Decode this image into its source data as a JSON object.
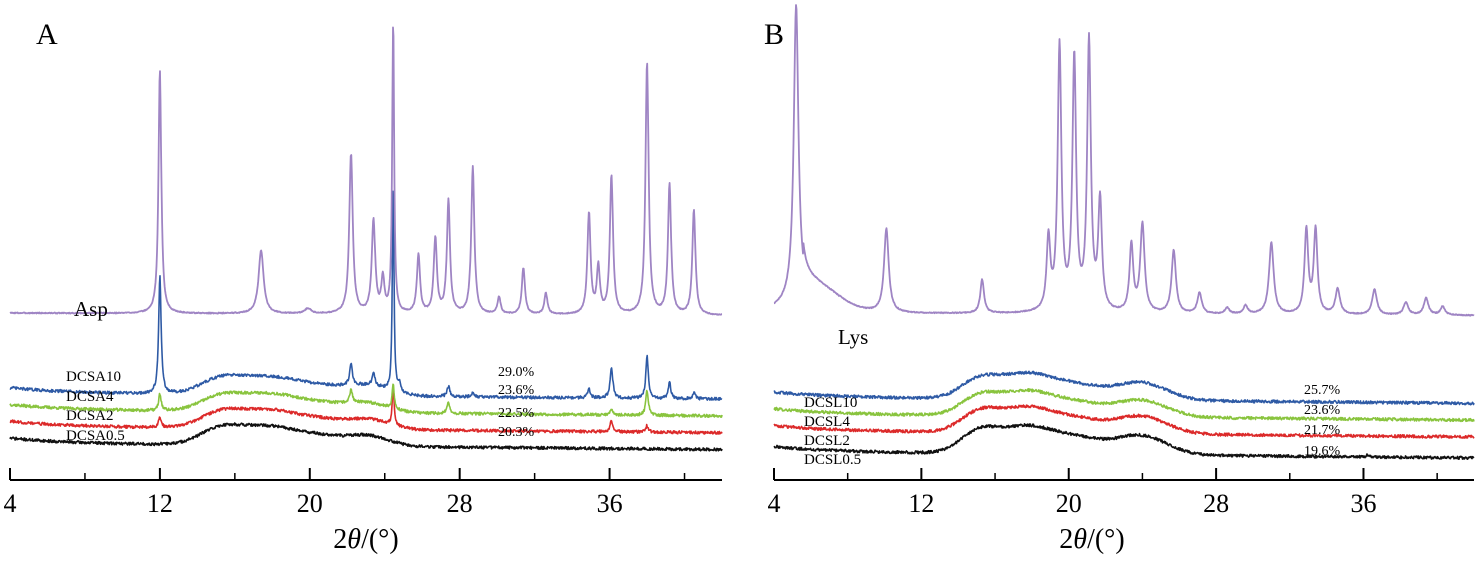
{
  "chart_data": [
    {
      "type": "line",
      "panel_label": "A",
      "xlabel_prefix": "2",
      "xlabel_var": "θ",
      "xlabel_unit": "/(°)",
      "xlim": [
        4,
        42
      ],
      "xticks": [
        4,
        12,
        20,
        28,
        36
      ],
      "y_axis_shown": false,
      "colors": {
        "purple": "#9f85c4",
        "blue": "#2e5aa5",
        "green": "#89c43e",
        "red": "#dc2a2a",
        "black": "#111111"
      },
      "series": [
        {
          "name": "Asp",
          "color": "#9f85c4",
          "baseline": 40,
          "peaks": [
            [
              12.0,
              58,
              0.09
            ],
            [
              17.4,
              15,
              0.16
            ],
            [
              19.9,
              1.2,
              0.2
            ],
            [
              22.2,
              38,
              0.11
            ],
            [
              23.4,
              22,
              0.11
            ],
            [
              23.9,
              8,
              0.1
            ],
            [
              24.45,
              70,
              0.06
            ],
            [
              25.8,
              14,
              0.1
            ],
            [
              26.7,
              18,
              0.1
            ],
            [
              27.4,
              27,
              0.1
            ],
            [
              28.7,
              35,
              0.1
            ],
            [
              30.1,
              4,
              0.1
            ],
            [
              31.4,
              11,
              0.1
            ],
            [
              32.6,
              5,
              0.1
            ],
            [
              34.9,
              24,
              0.1
            ],
            [
              35.4,
              11,
              0.1
            ],
            [
              36.1,
              33,
              0.1
            ],
            [
              38.0,
              60,
              0.1
            ],
            [
              39.2,
              31,
              0.1
            ],
            [
              40.5,
              25,
              0.1
            ]
          ]
        },
        {
          "name": "DCSA10",
          "percent": "29.0%",
          "color": "#2e5aa5",
          "baseline": 21,
          "amorphous": [
            [
              15.2,
              3.2,
              1.1
            ],
            [
              17.8,
              4.2,
              1.6
            ],
            [
              20.8,
              1.8,
              1.3
            ],
            [
              23.2,
              2.2,
              1.1
            ]
          ],
          "peaks": [
            [
              12.0,
              28,
              0.08
            ],
            [
              22.2,
              5,
              0.09
            ],
            [
              23.4,
              3,
              0.09
            ],
            [
              24.45,
              50,
              0.05
            ],
            [
              24.8,
              2,
              0.08
            ],
            [
              27.4,
              2.5,
              0.09
            ],
            [
              28.7,
              1,
              0.09
            ],
            [
              34.9,
              2,
              0.09
            ],
            [
              36.1,
              7,
              0.09
            ],
            [
              38.0,
              10,
              0.08
            ],
            [
              39.2,
              4,
              0.08
            ],
            [
              40.5,
              1.5,
              0.08
            ]
          ]
        },
        {
          "name": "DCSA4",
          "percent": "23.6%",
          "color": "#89c43e",
          "baseline": 17,
          "amorphous": [
            [
              15.2,
              3.0,
              1.1
            ],
            [
              17.8,
              4.2,
              1.6
            ],
            [
              20.8,
              1.7,
              1.3
            ],
            [
              23.2,
              2.1,
              1.1
            ]
          ],
          "peaks": [
            [
              12.0,
              4,
              0.08
            ],
            [
              22.2,
              3,
              0.09
            ],
            [
              24.45,
              6,
              0.06
            ],
            [
              27.4,
              2.5,
              0.09
            ],
            [
              36.1,
              1.5,
              0.09
            ],
            [
              38.0,
              6,
              0.08
            ]
          ]
        },
        {
          "name": "DCSA2",
          "percent": "22.5%",
          "color": "#dc2a2a",
          "baseline": 13,
          "amorphous": [
            [
              15.2,
              3.2,
              1.1
            ],
            [
              17.8,
              4.3,
              1.6
            ],
            [
              20.8,
              1.8,
              1.3
            ],
            [
              23.2,
              2.2,
              1.1
            ]
          ],
          "peaks": [
            [
              12.0,
              2.5,
              0.08
            ],
            [
              24.45,
              9,
              0.06
            ],
            [
              36.1,
              2.5,
              0.09
            ],
            [
              38.0,
              1.5,
              0.08
            ]
          ]
        },
        {
          "name": "DCSA0.5",
          "percent": "20.3%",
          "color": "#111111",
          "baseline": 9,
          "amorphous": [
            [
              15.2,
              3.4,
              1.1
            ],
            [
              17.8,
              4.4,
              1.6
            ],
            [
              20.8,
              1.8,
              1.3
            ],
            [
              23.2,
              2.3,
              1.1
            ]
          ],
          "peaks": []
        }
      ]
    },
    {
      "type": "line",
      "panel_label": "B",
      "xlabel_prefix": "2",
      "xlabel_var": "θ",
      "xlabel_unit": "/(°)",
      "xlim": [
        4,
        42
      ],
      "xticks": [
        4,
        12,
        20,
        28,
        36
      ],
      "y_axis_shown": false,
      "colors": {
        "purple": "#9f85c4",
        "blue": "#2e5aa5",
        "green": "#89c43e",
        "red": "#dc2a2a",
        "black": "#111111"
      },
      "series": [
        {
          "name": "Lys",
          "color": "#9f85c4",
          "baseline": 40,
          "amorphous": [
            [
              6.2,
              5,
              1.3
            ]
          ],
          "peaks": [
            [
              5.2,
              70,
              0.15
            ],
            [
              10.1,
              20,
              0.15
            ],
            [
              15.3,
              8,
              0.12
            ],
            [
              18.9,
              17,
              0.12
            ],
            [
              19.5,
              63,
              0.12
            ],
            [
              20.3,
              60,
              0.12
            ],
            [
              21.1,
              64,
              0.12
            ],
            [
              21.7,
              26,
              0.12
            ],
            [
              23.4,
              16,
              0.12
            ],
            [
              24.0,
              21,
              0.14
            ],
            [
              25.7,
              15,
              0.14
            ],
            [
              27.1,
              5,
              0.14
            ],
            [
              28.6,
              1.5,
              0.14
            ],
            [
              29.6,
              2,
              0.14
            ],
            [
              31.0,
              17,
              0.15
            ],
            [
              32.9,
              20,
              0.12
            ],
            [
              33.4,
              20,
              0.12
            ],
            [
              34.6,
              6,
              0.15
            ],
            [
              36.6,
              6,
              0.15
            ],
            [
              38.3,
              3,
              0.15
            ],
            [
              39.4,
              4,
              0.15
            ],
            [
              40.3,
              2,
              0.15
            ]
          ]
        },
        {
          "name": "DCSL10",
          "percent": "25.7%",
          "color": "#2e5aa5",
          "baseline": 20,
          "amorphous": [
            [
              15.1,
              4.0,
              1.0
            ],
            [
              17.7,
              6.0,
              1.5
            ],
            [
              20.6,
              2.8,
              1.3
            ],
            [
              23.9,
              4.2,
              1.4
            ]
          ],
          "peaks": []
        },
        {
          "name": "DCSL4",
          "percent": "23.6%",
          "color": "#89c43e",
          "baseline": 16,
          "amorphous": [
            [
              15.1,
              4.0,
              1.0
            ],
            [
              17.7,
              5.8,
              1.5
            ],
            [
              20.6,
              2.7,
              1.3
            ],
            [
              23.9,
              4.0,
              1.4
            ]
          ],
          "peaks": []
        },
        {
          "name": "DCSL2",
          "percent": "21.7%",
          "color": "#dc2a2a",
          "baseline": 12,
          "amorphous": [
            [
              15.1,
              4.2,
              1.0
            ],
            [
              17.7,
              6.0,
              1.5
            ],
            [
              20.6,
              2.8,
              1.3
            ],
            [
              23.9,
              4.2,
              1.4
            ]
          ],
          "peaks": []
        },
        {
          "name": "DCSL0.5",
          "percent": "19.6%",
          "color": "#111111",
          "baseline": 7,
          "amorphous": [
            [
              15.1,
              4.6,
              1.0
            ],
            [
              17.7,
              6.4,
              1.5
            ],
            [
              20.6,
              3.2,
              1.3
            ],
            [
              23.9,
              4.6,
              1.4
            ]
          ],
          "peaks": [
            [
              36.2,
              0.6,
              0.06
            ]
          ]
        }
      ]
    }
  ]
}
